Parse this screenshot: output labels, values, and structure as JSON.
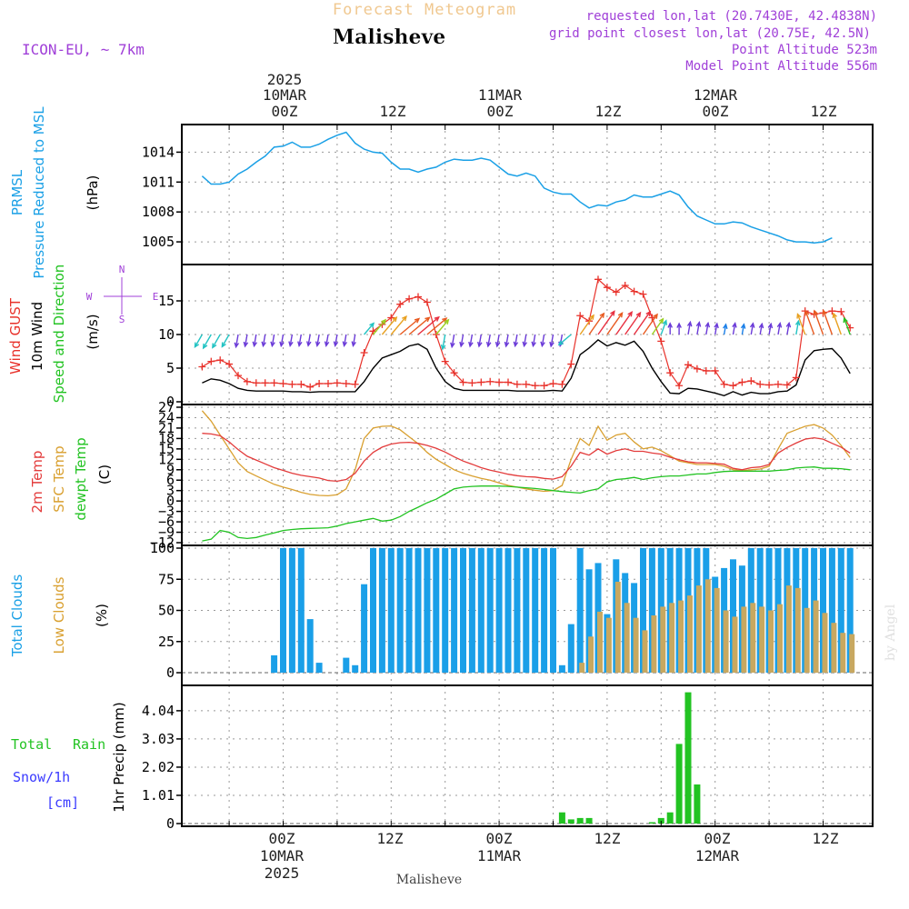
{
  "header": {
    "top_title": "Forecast Meteogram",
    "location": "Malisheve",
    "model": "ICON-EU, ~ 7km",
    "requested": "requested lon,lat (20.7430E, 42.4838N)",
    "grid_point": "grid point closest lon,lat (20.75E, 42.5N)",
    "point_altitude": "Point Altitude 523m",
    "model_altitude": "Model Point Altitude 556m",
    "watermark": "by Angel",
    "bottom_location": "Malisheve"
  },
  "time_axis": {
    "year": "2025",
    "top_dates": [
      "10MAR",
      "11MAR",
      "12MAR"
    ],
    "bottom_dates": [
      "10MAR",
      "11MAR",
      "12MAR"
    ],
    "labels": [
      "00Z",
      "12Z",
      "00Z",
      "12Z",
      "00Z",
      "12Z"
    ]
  },
  "panel_labels": {
    "pressure": [
      "PRMSL",
      "Pressure Reduced to MSL",
      "(hPa)"
    ],
    "wind": [
      "Wind GUST",
      "10m Wind",
      "Speed and Direction",
      "(m/s)"
    ],
    "compass": {
      "n": "N",
      "s": "S",
      "w": "W",
      "e": "E"
    },
    "temp": [
      "2m Temp",
      "SFC Temp",
      "dewpt Temp",
      "(C)"
    ],
    "clouds": [
      "Total Clouds",
      "Low Clouds",
      "(%)"
    ],
    "precip": [
      "Total",
      "Rain",
      "Snow/1h",
      "[cm]",
      "1hr Precip (mm)"
    ]
  },
  "colors": {
    "pressure": "#1aa0e6",
    "gust": "#e8312a",
    "wind": "#000000",
    "temp2m": "#e33b3b",
    "sfc": "#d9a030",
    "dew": "#22c322",
    "total_clouds": "#1a9fe8",
    "low_clouds": "#c8a860",
    "rain": "#22c322",
    "snow": "#3a3aff",
    "purple": "#a040d8"
  },
  "chart_data": [
    {
      "type": "line",
      "title": "PRMSL Pressure Reduced to MSL",
      "ylabel": "(hPa)",
      "ylim": [
        1003,
        1016.5
      ],
      "yticks": [
        1005,
        1008,
        1011,
        1014
      ],
      "x_hours_from_10MAR00Z": [
        -9,
        -8,
        -7,
        -6,
        -5,
        -4,
        -3,
        -2,
        -1,
        0,
        1,
        2,
        3,
        4,
        5,
        6,
        7,
        8,
        9,
        10,
        11,
        12,
        13,
        14,
        15,
        16,
        17,
        18,
        19,
        20,
        21,
        22,
        23,
        24,
        25,
        26,
        27,
        28,
        29,
        30,
        31,
        32,
        33,
        34,
        35,
        36,
        37,
        38,
        39,
        40,
        41,
        42,
        43,
        44,
        45,
        46,
        47,
        48,
        49,
        50,
        51,
        52,
        53,
        54,
        55,
        56,
        57,
        58,
        59,
        60,
        61,
        62,
        63
      ],
      "values": [
        1011.6,
        1010.8,
        1010.8,
        1011.0,
        1011.8,
        1012.3,
        1013.0,
        1013.6,
        1014.5,
        1014.6,
        1015.0,
        1014.5,
        1014.5,
        1014.8,
        1015.3,
        1015.7,
        1016.0,
        1014.9,
        1014.3,
        1014.0,
        1013.9,
        1013.0,
        1012.3,
        1012.3,
        1012.0,
        1012.3,
        1012.5,
        1013.0,
        1013.3,
        1013.2,
        1013.2,
        1013.4,
        1013.2,
        1012.5,
        1011.8,
        1011.6,
        1011.9,
        1011.6,
        1010.4,
        1010.0,
        1009.8,
        1009.8,
        1009.0,
        1008.4,
        1008.7,
        1008.6,
        1009.0,
        1009.2,
        1009.7,
        1009.5,
        1009.5,
        1009.8,
        1010.1,
        1009.7,
        1008.5,
        1007.6,
        1007.2,
        1006.8,
        1006.8,
        1007.0,
        1006.9,
        1006.5,
        1006.2,
        1005.9,
        1005.6,
        1005.2,
        1005.0,
        1005.0,
        1004.9,
        1005.0,
        1005.4
      ]
    },
    {
      "type": "line",
      "title": "Wind GUST / 10m Wind Speed and Direction",
      "ylabel": "(m/s)",
      "ylim": [
        0,
        20
      ],
      "yticks": [
        0,
        5,
        10,
        15
      ],
      "x_hours_from_10MAR00Z": [
        -9,
        -8,
        -7,
        -6,
        -5,
        -4,
        -3,
        -2,
        -1,
        0,
        1,
        2,
        3,
        4,
        5,
        6,
        7,
        8,
        9,
        10,
        11,
        12,
        13,
        14,
        15,
        16,
        17,
        18,
        19,
        20,
        21,
        22,
        23,
        24,
        25,
        26,
        27,
        28,
        29,
        30,
        31,
        32,
        33,
        34,
        35,
        36,
        37,
        38,
        39,
        40,
        41,
        42,
        43,
        44,
        45,
        46,
        47,
        48,
        49,
        50,
        51,
        52,
        53,
        54,
        55,
        56,
        57,
        58,
        59,
        60,
        61,
        62,
        63
      ],
      "series": [
        {
          "name": "Wind GUST",
          "values": [
            5.2,
            6.0,
            6.2,
            5.6,
            3.9,
            3.0,
            2.8,
            2.8,
            2.8,
            2.7,
            2.6,
            2.6,
            2.2,
            2.7,
            2.7,
            2.8,
            2.7,
            2.6,
            7.3,
            10.5,
            11.5,
            12.5,
            14.5,
            15.3,
            15.6,
            14.8,
            10.0,
            6.0,
            4.3,
            2.9,
            2.8,
            2.9,
            3.0,
            2.9,
            2.9,
            2.6,
            2.6,
            2.4,
            2.4,
            2.7,
            2.6,
            5.6,
            12.8,
            12.0,
            18.2,
            17.0,
            16.3,
            17.3,
            16.4,
            16.0,
            12.5,
            9.0,
            4.3,
            2.4,
            5.5,
            4.9,
            4.6,
            4.6,
            2.6,
            2.4,
            2.9,
            3.1,
            2.6,
            2.5,
            2.6,
            2.5,
            3.6,
            13.5,
            13.0,
            13.2,
            13.5,
            13.4,
            11.0
          ]
        },
        {
          "name": "10m Wind",
          "values": [
            2.8,
            3.4,
            3.2,
            2.7,
            2.0,
            1.7,
            1.6,
            1.6,
            1.6,
            1.6,
            1.5,
            1.5,
            1.4,
            1.5,
            1.5,
            1.5,
            1.5,
            1.5,
            3.0,
            5.0,
            6.5,
            7.0,
            7.5,
            8.3,
            8.6,
            7.8,
            5.0,
            3.0,
            2.0,
            1.7,
            1.7,
            1.7,
            1.7,
            1.7,
            1.7,
            1.6,
            1.6,
            1.6,
            1.6,
            1.7,
            1.6,
            3.5,
            7.0,
            8.0,
            9.2,
            8.3,
            8.8,
            8.4,
            9.0,
            7.5,
            5.0,
            3.0,
            1.3,
            1.2,
            2.0,
            1.9,
            1.6,
            1.3,
            0.9,
            1.5,
            1.0,
            1.4,
            1.2,
            1.2,
            1.5,
            1.6,
            2.5,
            6.2,
            7.6,
            7.8,
            7.9,
            6.5,
            4.2
          ]
        }
      ],
      "arrow_level": 10,
      "arrow_dir_deg": [
        30,
        30,
        30,
        30,
        10,
        10,
        10,
        10,
        10,
        10,
        10,
        10,
        10,
        10,
        10,
        10,
        10,
        10,
        220,
        220,
        220,
        220,
        230,
        230,
        230,
        230,
        220,
        10,
        10,
        10,
        10,
        10,
        10,
        10,
        10,
        10,
        10,
        10,
        10,
        10,
        10,
        50,
        215,
        215,
        215,
        215,
        215,
        215,
        215,
        215,
        215,
        200,
        180,
        180,
        190,
        190,
        190,
        190,
        190,
        190,
        190,
        190,
        190,
        190,
        190,
        190,
        190,
        160,
        160,
        160,
        160,
        160,
        160
      ]
    },
    {
      "type": "line",
      "title": "2m Temp / SFC Temp / dewpt Temp",
      "ylabel": "(C)",
      "ylim": [
        -12,
        27
      ],
      "yticks": [
        -12,
        -9,
        -6,
        -3,
        0,
        3,
        6,
        9,
        12,
        15,
        18,
        21,
        24,
        27
      ],
      "x_hours_from_10MAR00Z": [
        -9,
        -8,
        -7,
        -6,
        -5,
        -4,
        -3,
        -2,
        -1,
        0,
        1,
        2,
        3,
        4,
        5,
        6,
        7,
        8,
        9,
        10,
        11,
        12,
        13,
        14,
        15,
        16,
        17,
        18,
        19,
        20,
        21,
        22,
        23,
        24,
        25,
        26,
        27,
        28,
        29,
        30,
        31,
        32,
        33,
        34,
        35,
        36,
        37,
        38,
        39,
        40,
        41,
        42,
        43,
        44,
        45,
        46,
        47,
        48,
        49,
        50,
        51,
        52,
        53,
        54,
        55,
        56,
        57,
        58,
        59,
        60,
        61,
        62,
        63
      ],
      "series": [
        {
          "name": "2m Temp",
          "values": [
            19.5,
            19.3,
            18.8,
            17.0,
            14.8,
            12.9,
            11.8,
            10.7,
            9.6,
            8.8,
            8.0,
            7.4,
            7.0,
            6.6,
            5.9,
            5.7,
            6.2,
            8.0,
            11.5,
            14.0,
            15.5,
            16.4,
            16.8,
            16.9,
            16.6,
            16.0,
            15.2,
            14.1,
            12.7,
            11.5,
            10.6,
            9.6,
            8.9,
            8.3,
            7.7,
            7.3,
            7.0,
            6.9,
            6.5,
            6.3,
            7.0,
            10.0,
            14.0,
            13.2,
            15.0,
            13.5,
            14.5,
            15.0,
            14.3,
            14.3,
            13.8,
            13.5,
            12.6,
            11.9,
            11.3,
            11.0,
            11.0,
            10.8,
            10.6,
            9.4,
            9.0,
            9.6,
            9.8,
            10.5,
            13.8,
            15.4,
            16.7,
            17.8,
            18.2,
            17.8,
            16.6,
            15.5,
            13.8
          ]
        },
        {
          "name": "SFC Temp",
          "values": [
            26.0,
            23.0,
            19.0,
            15.0,
            11.0,
            8.5,
            7.2,
            6.0,
            4.8,
            4.0,
            3.3,
            2.5,
            1.9,
            1.6,
            1.5,
            1.8,
            3.5,
            9.0,
            18.0,
            21.0,
            21.5,
            21.6,
            20.5,
            18.5,
            16.5,
            14.0,
            12.0,
            10.5,
            9.0,
            8.0,
            7.2,
            6.5,
            6.0,
            5.2,
            4.5,
            4.0,
            3.5,
            3.1,
            2.8,
            3.0,
            4.5,
            12.0,
            18.0,
            16.0,
            21.5,
            17.5,
            19.0,
            19.5,
            17.0,
            15.0,
            15.5,
            14.5,
            13.0,
            11.5,
            11.0,
            10.5,
            10.5,
            10.5,
            10.0,
            9.0,
            8.7,
            9.0,
            9.2,
            10.0,
            15.0,
            19.5,
            20.5,
            21.5,
            22.0,
            21.0,
            19.0,
            16.0,
            12.5
          ]
        },
        {
          "name": "dewpt Temp",
          "values": [
            -11.5,
            -11.0,
            -8.5,
            -9.0,
            -10.5,
            -10.8,
            -10.5,
            -9.8,
            -9.2,
            -8.5,
            -8.2,
            -8.0,
            -7.9,
            -7.8,
            -7.7,
            -7.2,
            -6.5,
            -6.0,
            -5.5,
            -5.0,
            -5.8,
            -5.5,
            -4.5,
            -3.0,
            -1.8,
            -0.5,
            0.5,
            2.0,
            3.5,
            4.0,
            4.2,
            4.3,
            4.3,
            4.3,
            4.2,
            4.0,
            3.8,
            3.6,
            3.3,
            3.0,
            2.7,
            2.5,
            2.3,
            3.0,
            3.5,
            5.5,
            6.2,
            6.4,
            6.8,
            6.2,
            6.7,
            7.0,
            7.2,
            7.2,
            7.5,
            7.8,
            7.8,
            8.2,
            8.5,
            8.6,
            8.6,
            8.6,
            8.6,
            8.6,
            8.8,
            9.0,
            9.5,
            9.7,
            9.8,
            9.4,
            9.4,
            9.3,
            9.0
          ]
        }
      ]
    },
    {
      "type": "bar",
      "title": "Total Clouds / Low Clouds",
      "ylabel": "(%)",
      "ylim": [
        -8,
        100
      ],
      "yticks": [
        0,
        25,
        50,
        75,
        100
      ],
      "x_hours_from_10MAR00Z": [
        -9,
        -8,
        -7,
        -6,
        -5,
        -4,
        -3,
        -2,
        -1,
        0,
        1,
        2,
        3,
        4,
        5,
        6,
        7,
        8,
        9,
        10,
        11,
        12,
        13,
        14,
        15,
        16,
        17,
        18,
        19,
        20,
        21,
        22,
        23,
        24,
        25,
        26,
        27,
        28,
        29,
        30,
        31,
        32,
        33,
        34,
        35,
        36,
        37,
        38,
        39,
        40,
        41,
        42,
        43,
        44,
        45,
        46,
        47,
        48,
        49,
        50,
        51,
        52,
        53,
        54,
        55,
        56,
        57,
        58,
        59,
        60,
        61,
        62,
        63
      ],
      "series": [
        {
          "name": "Total Clouds",
          "values": [
            0,
            0,
            0,
            0,
            0,
            0,
            0,
            0,
            14,
            100,
            100,
            100,
            43,
            8,
            0,
            0,
            12,
            6,
            71,
            100,
            100,
            100,
            100,
            100,
            100,
            100,
            100,
            100,
            100,
            100,
            100,
            100,
            100,
            100,
            100,
            100,
            100,
            100,
            100,
            100,
            6,
            39,
            100,
            83,
            88,
            47,
            91,
            80,
            72,
            100,
            100,
            100,
            100,
            100,
            100,
            100,
            100,
            77,
            84,
            91,
            86,
            100,
            100,
            100,
            100,
            100,
            100,
            100,
            100,
            100,
            100,
            100,
            100
          ]
        },
        {
          "name": "Low Clouds",
          "values": [
            0,
            0,
            0,
            0,
            0,
            0,
            0,
            0,
            0,
            0,
            0,
            0,
            0,
            0,
            0,
            0,
            0,
            0,
            0,
            0,
            0,
            0,
            0,
            0,
            0,
            0,
            0,
            0,
            0,
            0,
            0,
            0,
            0,
            0,
            0,
            0,
            0,
            0,
            0,
            0,
            0,
            0,
            8,
            29,
            49,
            44,
            73,
            56,
            44,
            34,
            46,
            53,
            56,
            58,
            62,
            70,
            75,
            68,
            50,
            45,
            53,
            56,
            53,
            50,
            55,
            70,
            68,
            52,
            58,
            48,
            40,
            32,
            31
          ]
        }
      ]
    },
    {
      "type": "bar",
      "title": "1hr Precip",
      "ylabel": "1hr Precip (mm)",
      "ylim": [
        0,
        4.85
      ],
      "yticks": [
        0,
        1.01,
        2.02,
        3.03,
        4.04
      ],
      "ytick_labels": [
        "0",
        "1.01",
        "2.02",
        "3.03",
        "4.04"
      ],
      "x_hours_from_10MAR00Z": [
        31,
        32,
        33,
        34,
        35,
        41,
        42,
        43,
        44,
        45,
        46
      ],
      "series": [
        {
          "name": "Total Rain",
          "values": [
            0.4,
            0.15,
            0.2,
            0.2,
            0.0,
            0.05,
            0.2,
            0.4,
            2.85,
            4.7,
            1.4
          ]
        },
        {
          "name": "Snow/1h",
          "values": [
            0,
            0,
            0,
            0,
            0,
            0,
            0,
            0,
            0,
            0,
            0
          ]
        }
      ]
    }
  ]
}
